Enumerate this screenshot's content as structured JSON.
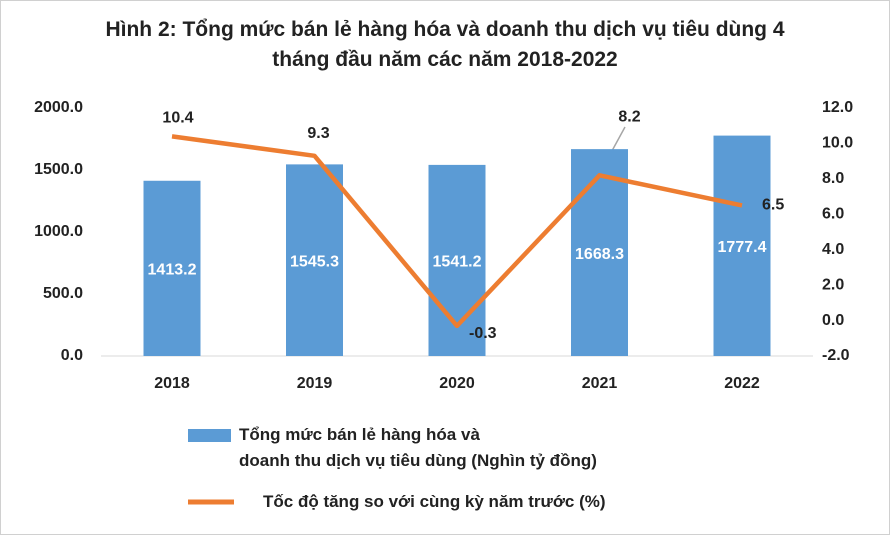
{
  "chart_data": {
    "type": "bar+line",
    "title": "Hình 2: Tổng mức bán lẻ hàng hóa và doanh thu dịch vụ tiêu dùng 4 tháng đầu năm các năm 2018-2022",
    "categories": [
      "2018",
      "2019",
      "2020",
      "2021",
      "2022"
    ],
    "series": [
      {
        "name": "Tổng mức bán lẻ hàng hóa và\ndoanh thu dịch vụ tiêu dùng (Nghìn tỷ đồng)",
        "type": "bar",
        "color": "#5b9bd5",
        "values": [
          1413.2,
          1545.3,
          1541.2,
          1668.3,
          1777.4
        ]
      },
      {
        "name": "Tốc độ tăng so với cùng kỳ năm trước (%)",
        "type": "line",
        "color": "#ed7d31",
        "axis": "y2",
        "values": [
          10.4,
          9.3,
          -0.3,
          8.2,
          6.5
        ]
      }
    ],
    "ylim": [
      0,
      2000
    ],
    "yticks": [
      {
        "value": 0,
        "label": "0.0"
      },
      {
        "value": 500,
        "label": "500.0"
      },
      {
        "value": 1000,
        "label": "1000.0"
      },
      {
        "value": 1500,
        "label": "1500.0"
      },
      {
        "value": 2000,
        "label": "2000.0"
      }
    ],
    "y2lim": [
      -2,
      12
    ],
    "y2ticks": [
      {
        "value": -2,
        "label": "-2.0"
      },
      {
        "value": 0,
        "label": "0.0"
      },
      {
        "value": 2,
        "label": "2.0"
      },
      {
        "value": 4,
        "label": "4.0"
      },
      {
        "value": 6,
        "label": "6.0"
      },
      {
        "value": 8,
        "label": "8.0"
      },
      {
        "value": 10,
        "label": "10.0"
      },
      {
        "value": 12,
        "label": "12.0"
      }
    ],
    "grid": false
  }
}
